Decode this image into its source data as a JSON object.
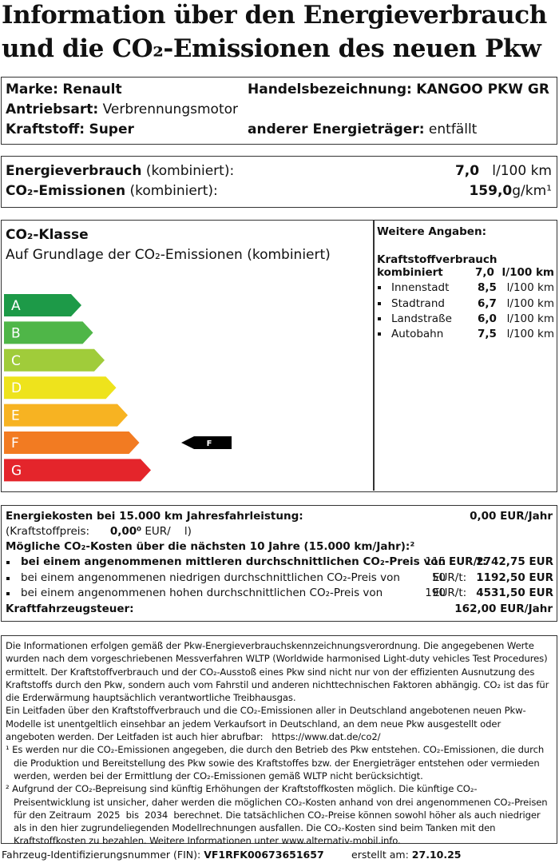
{
  "header": {
    "title": "Information über den Energieverbrauch und die CO₂-Emissionen des neuen Pkw"
  },
  "vehicle": {
    "make_label": "Marke:",
    "make": "Renault",
    "trade_name_label": "Handelsbezeichnung:",
    "trade_name": "KANGOO PKW GR",
    "drive_label": "Antriebsart:",
    "drive": "Verbrennungsmotor",
    "fuel_label": "Kraftstoff:",
    "fuel": "Super",
    "other_energy_label": "anderer Energieträger:",
    "other_energy": "entfällt"
  },
  "consumption": {
    "energy_label": "Energieverbrauch",
    "energy_qualifier": "(kombiniert):",
    "energy_value": "7,0",
    "energy_unit": "l/100 km",
    "co2_label": "CO₂-Emissionen",
    "co2_qualifier": "(kombiniert):",
    "co2_value": "159,0",
    "co2_unit": "g/km¹"
  },
  "co2_class": {
    "title": "CO₂-Klasse",
    "subtitle": "Auf Grundlage der CO₂-Emissionen (kombiniert)",
    "classes": [
      "A",
      "B",
      "C",
      "D",
      "E",
      "F",
      "G"
    ],
    "current": "F"
  },
  "further": {
    "title": "Weitere Angaben:",
    "fuel_title": "Kraftstoffverbrauch",
    "combined_label": "kombiniert",
    "combined_value": "7,0",
    "combined_unit": "l/100 km",
    "rows": [
      {
        "label": "Innenstadt",
        "value": "8,5",
        "unit": "l/100 km"
      },
      {
        "label": "Stadtrand",
        "value": "6,7",
        "unit": "l/100 km"
      },
      {
        "label": "Landstraße",
        "value": "6,0",
        "unit": "l/100 km"
      },
      {
        "label": "Autobahn",
        "value": "7,5",
        "unit": "l/100 km"
      }
    ]
  },
  "costs": {
    "energy_costs_label": "Energiekosten bei 15.000 km Jahresfahrleistung:",
    "energy_costs_value": "0,00 EUR/Jahr",
    "fuel_price_label": "(Kraftstoffpreis:",
    "fuel_price": "0,00⁰",
    "fuel_price_currency": "EUR/",
    "fuel_price_unit": "l)",
    "co2_costs_label": "Mögliche CO₂-Kosten über die nächsten 10 Jahre (15.000 km/Jahr):²",
    "scenarios": [
      {
        "text": "bei einem angenommenen mittleren durchschnittlichen CO₂-Preis von",
        "price": "115",
        "price_unit": "EUR/t:",
        "value": "2742,75 EUR"
      },
      {
        "text": "bei einem angenommenen niedrigen durchschnittlichen CO₂-Preis von",
        "price": "50",
        "price_unit": "EUR/t:",
        "value": "1192,50 EUR"
      },
      {
        "text": "bei einem angenommenen hohen durchschnittlichen CO₂-Preis von",
        "price": "190",
        "price_unit": "EUR/t:",
        "value": "4531,50 EUR"
      }
    ],
    "tax_label": "Kraftfahrzeugsteuer:",
    "tax_value": "162,00 EUR/Jahr"
  },
  "notes": [
    {
      "mark": "",
      "text": "Die Informationen erfolgen gemäß der Pkw-Energieverbrauchskennzeichnungsverordnung. Die angegebenen Werte wurden nach dem vorgeschriebenen Messverfahren WLTP (Worldwide harmonised Light-duty vehicles Test Procedures) ermittelt. Der Kraftstoffverbrauch und der CO₂-Ausstoß eines Pkw sind nicht nur von der effizienten Ausnutzung des Kraftstoffs durch den Pkw, sondern auch vom Fahrstil und anderen nichttechnischen Faktoren abhängig. CO₂ ist das für die Erderwärmung hauptsächlich verantwortliche Treibhausgas."
    },
    {
      "mark": "",
      "text": "Ein Leitfaden über den Kraftstoffverbrauch und die CO₂-Emissionen aller in Deutschland angebotenen neuen Pkw-Modelle ist unentgeltlich einsehbar an jedem Verkaufsort in Deutschland, an dem neue Pkw ausgestellt oder angeboten werden. Der Leitfaden ist auch hier abrufbar:   https://www.dat.de/co2/"
    },
    {
      "mark": "¹",
      "text": "Es werden nur die CO₂-Emissionen angegeben, die durch den Betrieb des Pkw entstehen. CO₂-Emissionen, die durch die Produktion und Bereitstellung des Pkw sowie des Kraftstoffes bzw. der Energieträger entstehen oder vermieden werden, werden bei der Ermittlung der CO₂-Emissionen gemäß WLTP nicht berücksichtigt."
    },
    {
      "mark": "²",
      "text": "Aufgrund der CO₂-Bepreisung sind künftig Erhöhungen der Kraftstoffkosten möglich. Die künftige CO₂-Preisentwicklung ist unsicher, daher werden die möglichen CO₂-Kosten anhand von drei angenommenen CO₂-Preisen für den Zeitraum  2025  bis  2034  berechnet. Die tatsächlichen CO₂-Preise können sowohl höher als auch niedriger als in den hier zugrundeliegenden Modellrechnungen ausfallen. Die CO₂-Kosten sind beim Tanken mit den Kraftstoffkosten zu bezahlen. Weitere Informationen unter www.alternativ-mobil.info."
    }
  ],
  "footer": {
    "fin_label": "Fahrzeug-Identifizierungsnummer (FIN):",
    "fin": "VF1RFK00673651657",
    "created_label": "erstellt am:",
    "created": "27.10.25"
  }
}
